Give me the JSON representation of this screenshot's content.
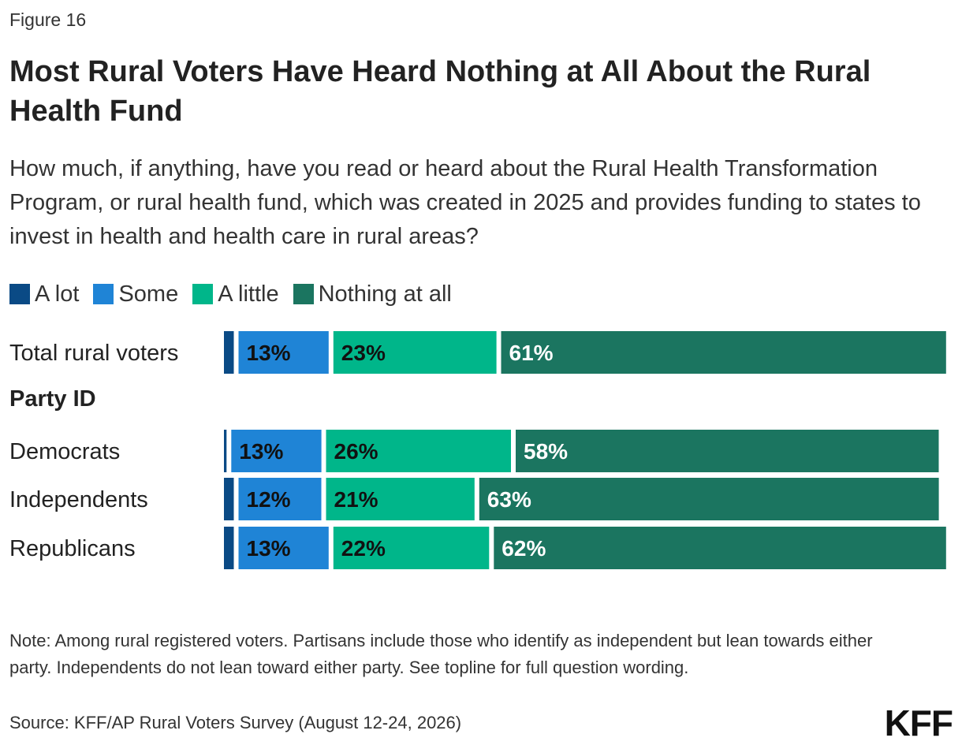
{
  "figure_label": "Figure 16",
  "title": "Most Rural Voters Have Heard Nothing at All About the Rural Health Fund",
  "subtitle": "How much, if anything, have you read or heard about the Rural Health Transformation Program, or rural health fund, which was created in 2025 and provides funding to states to invest in health and health care in rural areas?",
  "note": "Note: Among rural registered voters. Partisans include those who identify as independent but lean towards either party. Independents do not lean toward either party. See topline for full question wording.",
  "source": "Source: KFF/AP Rural Voters Survey (August 12-24, 2026)",
  "logo": "KFF",
  "group_label": "Party ID",
  "colors": {
    "a_lot": "#0a4a85",
    "some": "#1f84d6",
    "a_little": "#00b68a",
    "nothing": "#1b7560"
  },
  "chart_data": {
    "type": "bar",
    "orientation": "horizontal",
    "stacked": true,
    "title": "Most Rural Voters Have Heard Nothing at All About the Rural Health Fund",
    "legend_position": "top-left",
    "categories": [
      "Total rural voters",
      "Democrats",
      "Independents",
      "Republicans"
    ],
    "groups": [
      {
        "label": "",
        "categories": [
          "Total rural voters"
        ]
      },
      {
        "label": "Party ID",
        "categories": [
          "Democrats",
          "Independents",
          "Republicans"
        ]
      }
    ],
    "series": [
      {
        "name": "A lot",
        "color": "#0a4a85",
        "values": [
          2,
          1,
          2,
          2
        ]
      },
      {
        "name": "Some",
        "color": "#1f84d6",
        "values": [
          13,
          13,
          12,
          13
        ]
      },
      {
        "name": "A little",
        "color": "#00b68a",
        "values": [
          23,
          26,
          21,
          22
        ]
      },
      {
        "name": "Nothing at all",
        "color": "#1b7560",
        "values": [
          61,
          58,
          63,
          62
        ]
      }
    ],
    "data_labels": [
      [
        "",
        "13%",
        "23%",
        "61%"
      ],
      [
        "",
        "13%",
        "26%",
        "58%"
      ],
      [
        "",
        "12%",
        "21%",
        "63%"
      ],
      [
        "",
        "13%",
        "22%",
        "62%"
      ]
    ],
    "xlim": [
      0,
      100
    ]
  }
}
